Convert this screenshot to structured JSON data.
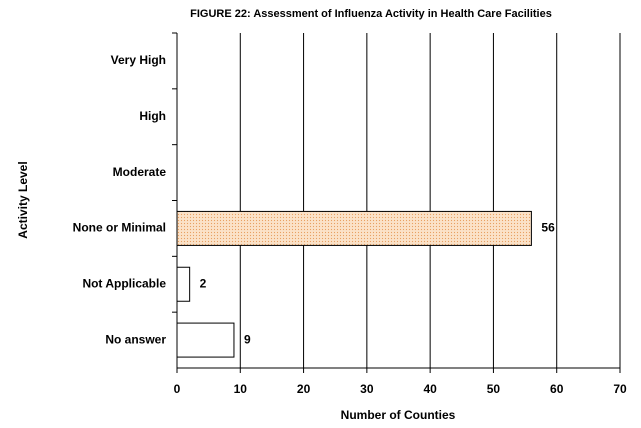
{
  "chart_data": {
    "type": "bar",
    "orientation": "horizontal",
    "title": "FIGURE 22: Assessment of Influenza Activity in Health Care Facilities",
    "x_label": "Number of Counties",
    "y_label": "Activity Level",
    "categories": [
      "Very High",
      "High",
      "Moderate",
      "None or Minimal",
      "Not Applicable",
      "No answer"
    ],
    "values": [
      0,
      0,
      0,
      56,
      2,
      9
    ],
    "colors": [
      "#ffffff",
      "#ffffff",
      "#ffffff",
      "#fbe2c8",
      "#ffffff",
      "#ffffff"
    ],
    "xlim": [
      0,
      70
    ],
    "xticks": [
      0,
      10,
      20,
      30,
      40,
      50,
      60,
      70
    ],
    "grid": true
  }
}
